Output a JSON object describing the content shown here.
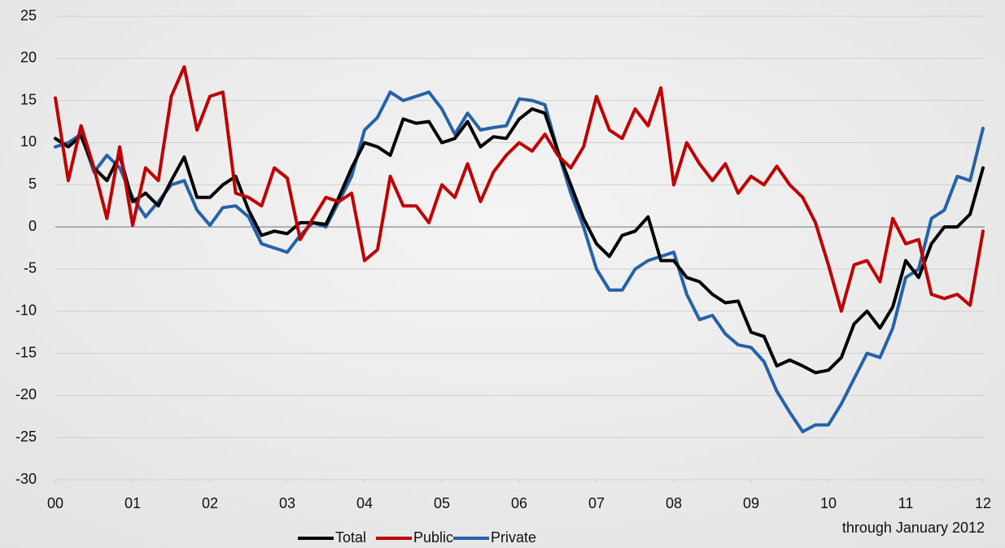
{
  "chart_data": {
    "type": "line",
    "annotation": "through January 2012",
    "x": [
      2000,
      2000.167,
      2000.333,
      2000.5,
      2000.667,
      2000.833,
      2001,
      2001.167,
      2001.333,
      2001.5,
      2001.667,
      2001.833,
      2002,
      2002.167,
      2002.333,
      2002.5,
      2002.667,
      2002.833,
      2003,
      2003.167,
      2003.333,
      2003.5,
      2003.667,
      2003.833,
      2004,
      2004.167,
      2004.333,
      2004.5,
      2004.667,
      2004.833,
      2005,
      2005.167,
      2005.333,
      2005.5,
      2005.667,
      2005.833,
      2006,
      2006.167,
      2006.333,
      2006.5,
      2006.667,
      2006.833,
      2007,
      2007.167,
      2007.333,
      2007.5,
      2007.667,
      2007.833,
      2008,
      2008.167,
      2008.333,
      2008.5,
      2008.667,
      2008.833,
      2009,
      2009.167,
      2009.333,
      2009.5,
      2009.667,
      2009.833,
      2010,
      2010.167,
      2010.333,
      2010.5,
      2010.667,
      2010.833,
      2011,
      2011.167,
      2011.333,
      2011.5,
      2011.667,
      2011.833,
      2012
    ],
    "series": [
      {
        "name": "Total",
        "color": "#000000",
        "values": [
          10.5,
          9.5,
          10.8,
          7,
          5.5,
          8.5,
          3,
          4,
          2.5,
          5.5,
          8.3,
          3.5,
          3.5,
          5,
          6,
          2,
          -1,
          -0.5,
          -0.8,
          0.5,
          0.5,
          0.3,
          3.5,
          7,
          10,
          9.5,
          8.5,
          12.8,
          12.3,
          12.5,
          10,
          10.5,
          12.5,
          9.5,
          10.7,
          10.5,
          12.8,
          14,
          13.5,
          9,
          5,
          1,
          -2,
          -3.5,
          -1,
          -0.5,
          1.2,
          -4,
          -4,
          -6,
          -6.5,
          -8,
          -9,
          -8.8,
          -12.5,
          -13,
          -16.5,
          -15.8,
          -16.5,
          -17.3,
          -17,
          -15.5,
          -11.5,
          -10,
          -12,
          -9.5,
          -4,
          -6,
          -2,
          0,
          0,
          1.5,
          7
        ]
      },
      {
        "name": "Public",
        "color": "#c00000",
        "values": [
          15.3,
          5.5,
          12,
          7,
          1,
          9.5,
          0.2,
          7,
          5.5,
          15.5,
          19,
          11.5,
          15.5,
          16,
          4,
          3.5,
          2.5,
          7,
          5.8,
          -1.5,
          1,
          3.5,
          3,
          4,
          -4,
          -2.7,
          6,
          2.5,
          2.5,
          0.5,
          5,
          3.5,
          7.5,
          3,
          6.5,
          8.5,
          10,
          9,
          11,
          8.5,
          7,
          9.5,
          15.5,
          11.5,
          10.5,
          14,
          12,
          16.5,
          5,
          10,
          7.5,
          5.5,
          7.5,
          4,
          6,
          5,
          7.2,
          5,
          3.5,
          0.5,
          -4.5,
          -10,
          -4.5,
          -4,
          -6.5,
          1,
          -2,
          -1.5,
          -8,
          -8.5,
          -8,
          -9.3,
          -0.5
        ]
      },
      {
        "name": "Private",
        "color": "#2563a8",
        "values": [
          9.5,
          10,
          11,
          6.5,
          8.5,
          7,
          3.5,
          1.2,
          3,
          5,
          5.5,
          2,
          0.2,
          2.3,
          2.5,
          1.2,
          -2,
          -2.5,
          -3,
          -1,
          0.5,
          0,
          3,
          6,
          11.5,
          13,
          16,
          15,
          15.5,
          16,
          14,
          11,
          13.5,
          11.5,
          11.8,
          12,
          15.2,
          15,
          14.5,
          9,
          4,
          0,
          -5,
          -7.5,
          -7.5,
          -5,
          -4,
          -3.5,
          -3,
          -8,
          -11,
          -10.5,
          -12.7,
          -14,
          -14.3,
          -16,
          -19.5,
          -22,
          -24.3,
          -23.5,
          -23.5,
          -21,
          -18,
          -15,
          -15.5,
          -12,
          -6,
          -5,
          1,
          2,
          6,
          5.5,
          11.7
        ]
      }
    ],
    "xlim": [
      2000,
      2012
    ],
    "xticks": [
      {
        "value": 2000,
        "label": "00"
      },
      {
        "value": 2001,
        "label": "01"
      },
      {
        "value": 2002,
        "label": "02"
      },
      {
        "value": 2003,
        "label": "03"
      },
      {
        "value": 2004,
        "label": "04"
      },
      {
        "value": 2005,
        "label": "05"
      },
      {
        "value": 2006,
        "label": "06"
      },
      {
        "value": 2007,
        "label": "07"
      },
      {
        "value": 2008,
        "label": "08"
      },
      {
        "value": 2009,
        "label": "09"
      },
      {
        "value": 2010,
        "label": "10"
      },
      {
        "value": 2011,
        "label": "11"
      },
      {
        "value": 2012,
        "label": "12"
      }
    ],
    "ylim": [
      -30,
      25
    ],
    "yticks": [
      -30,
      -25,
      -20,
      -15,
      -10,
      -5,
      0,
      5,
      10,
      15,
      20,
      25
    ],
    "grid": true,
    "legend": "bottom"
  }
}
